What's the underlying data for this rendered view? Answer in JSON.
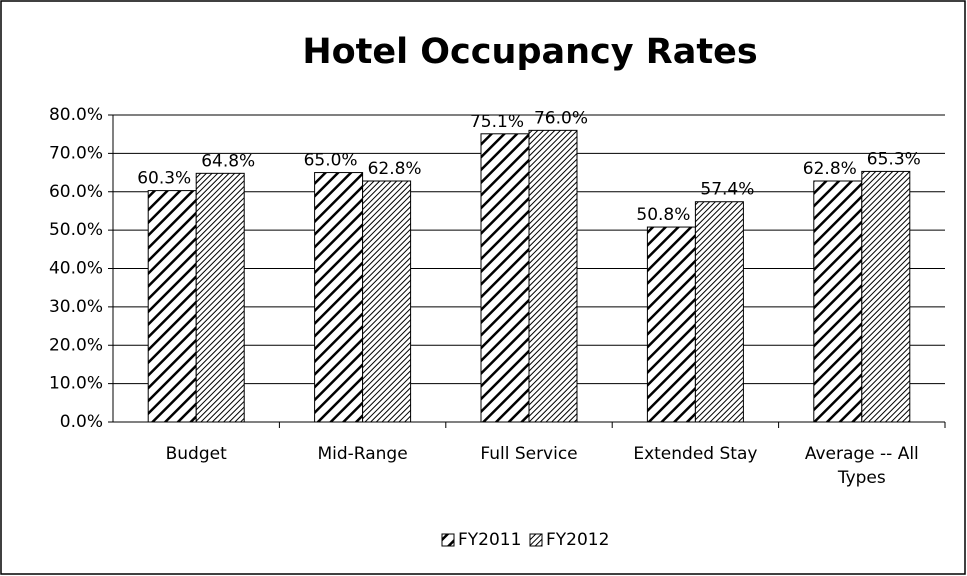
{
  "chart_data": {
    "type": "bar",
    "title": "Hotel Occupancy Rates",
    "categories": [
      "Budget",
      "Mid-Range",
      "Full Service",
      "Extended Stay",
      "Average -- All Types"
    ],
    "series": [
      {
        "name": "FY2011",
        "color": "#000000",
        "values": [
          60.3,
          65.0,
          75.1,
          50.8,
          62.8
        ],
        "value_labels": [
          "60.3%",
          "65.0%",
          "75.1%",
          "50.8%",
          "62.8%"
        ]
      },
      {
        "name": "FY2012",
        "color": "#000000",
        "values": [
          64.8,
          62.8,
          76.0,
          57.4,
          65.3
        ],
        "value_labels": [
          "64.8%",
          "62.8%",
          "76.0%",
          "57.4%",
          "65.3%"
        ]
      }
    ],
    "ylim": [
      0,
      80
    ],
    "yticks": [
      {
        "value": 0,
        "label": "0.0%"
      },
      {
        "value": 10,
        "label": "10.0%"
      },
      {
        "value": 20,
        "label": "20.0%"
      },
      {
        "value": 30,
        "label": "30.0%"
      },
      {
        "value": 40,
        "label": "40.0%"
      },
      {
        "value": 50,
        "label": "50.0%"
      },
      {
        "value": 60,
        "label": "60.0%"
      },
      {
        "value": 70,
        "label": "70.0%"
      },
      {
        "value": 80,
        "label": "80.0%"
      }
    ],
    "grid": true,
    "legend": "bottom"
  }
}
